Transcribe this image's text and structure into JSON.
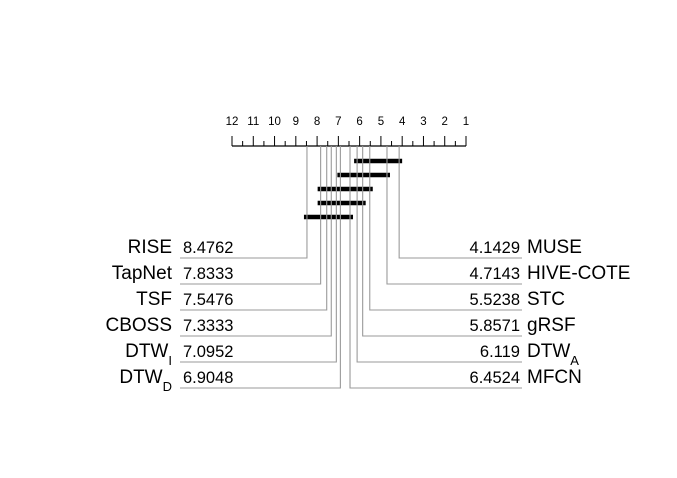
{
  "chart_data": {
    "type": "critical-difference-diagram",
    "axis": {
      "min_rank": 1,
      "max_rank": 12,
      "ticks": [
        "12",
        "11",
        "10",
        "9",
        "8",
        "7",
        "6",
        "5",
        "4",
        "3",
        "2",
        "1"
      ]
    },
    "left_methods": [
      {
        "name": "RISE",
        "subscript": "",
        "rank": 8.4762,
        "rank_label": "8.4762"
      },
      {
        "name": "TapNet",
        "subscript": "",
        "rank": 7.8333,
        "rank_label": "7.8333"
      },
      {
        "name": "TSF",
        "subscript": "",
        "rank": 7.5476,
        "rank_label": "7.5476"
      },
      {
        "name": "CBOSS",
        "subscript": "",
        "rank": 7.3333,
        "rank_label": "7.3333"
      },
      {
        "name": "DTW",
        "subscript": "I",
        "rank": 7.0952,
        "rank_label": "7.0952"
      },
      {
        "name": "DTW",
        "subscript": "D",
        "rank": 6.9048,
        "rank_label": "6.9048"
      }
    ],
    "right_methods": [
      {
        "name": "MUSE",
        "subscript": "",
        "rank": 4.1429,
        "rank_label": "4.1429"
      },
      {
        "name": "HIVE-COTE",
        "subscript": "",
        "rank": 4.7143,
        "rank_label": "4.7143"
      },
      {
        "name": "STC",
        "subscript": "",
        "rank": 5.5238,
        "rank_label": "5.5238"
      },
      {
        "name": "gRSF",
        "subscript": "",
        "rank": 5.8571,
        "rank_label": "5.8571"
      },
      {
        "name": "DTW",
        "subscript": "A",
        "rank": 6.119,
        "rank_label": "6.119"
      },
      {
        "name": "MFCN",
        "subscript": "",
        "rank": 6.4524,
        "rank_label": "6.4524"
      }
    ],
    "cliques": [
      {
        "from_rank": 4.1429,
        "to_rank": 6.119
      },
      {
        "from_rank": 4.7143,
        "to_rank": 6.9048
      },
      {
        "from_rank": 5.5238,
        "to_rank": 7.8333
      },
      {
        "from_rank": 5.8571,
        "to_rank": 7.8333
      },
      {
        "from_rank": 6.4524,
        "to_rank": 8.4762
      }
    ]
  }
}
